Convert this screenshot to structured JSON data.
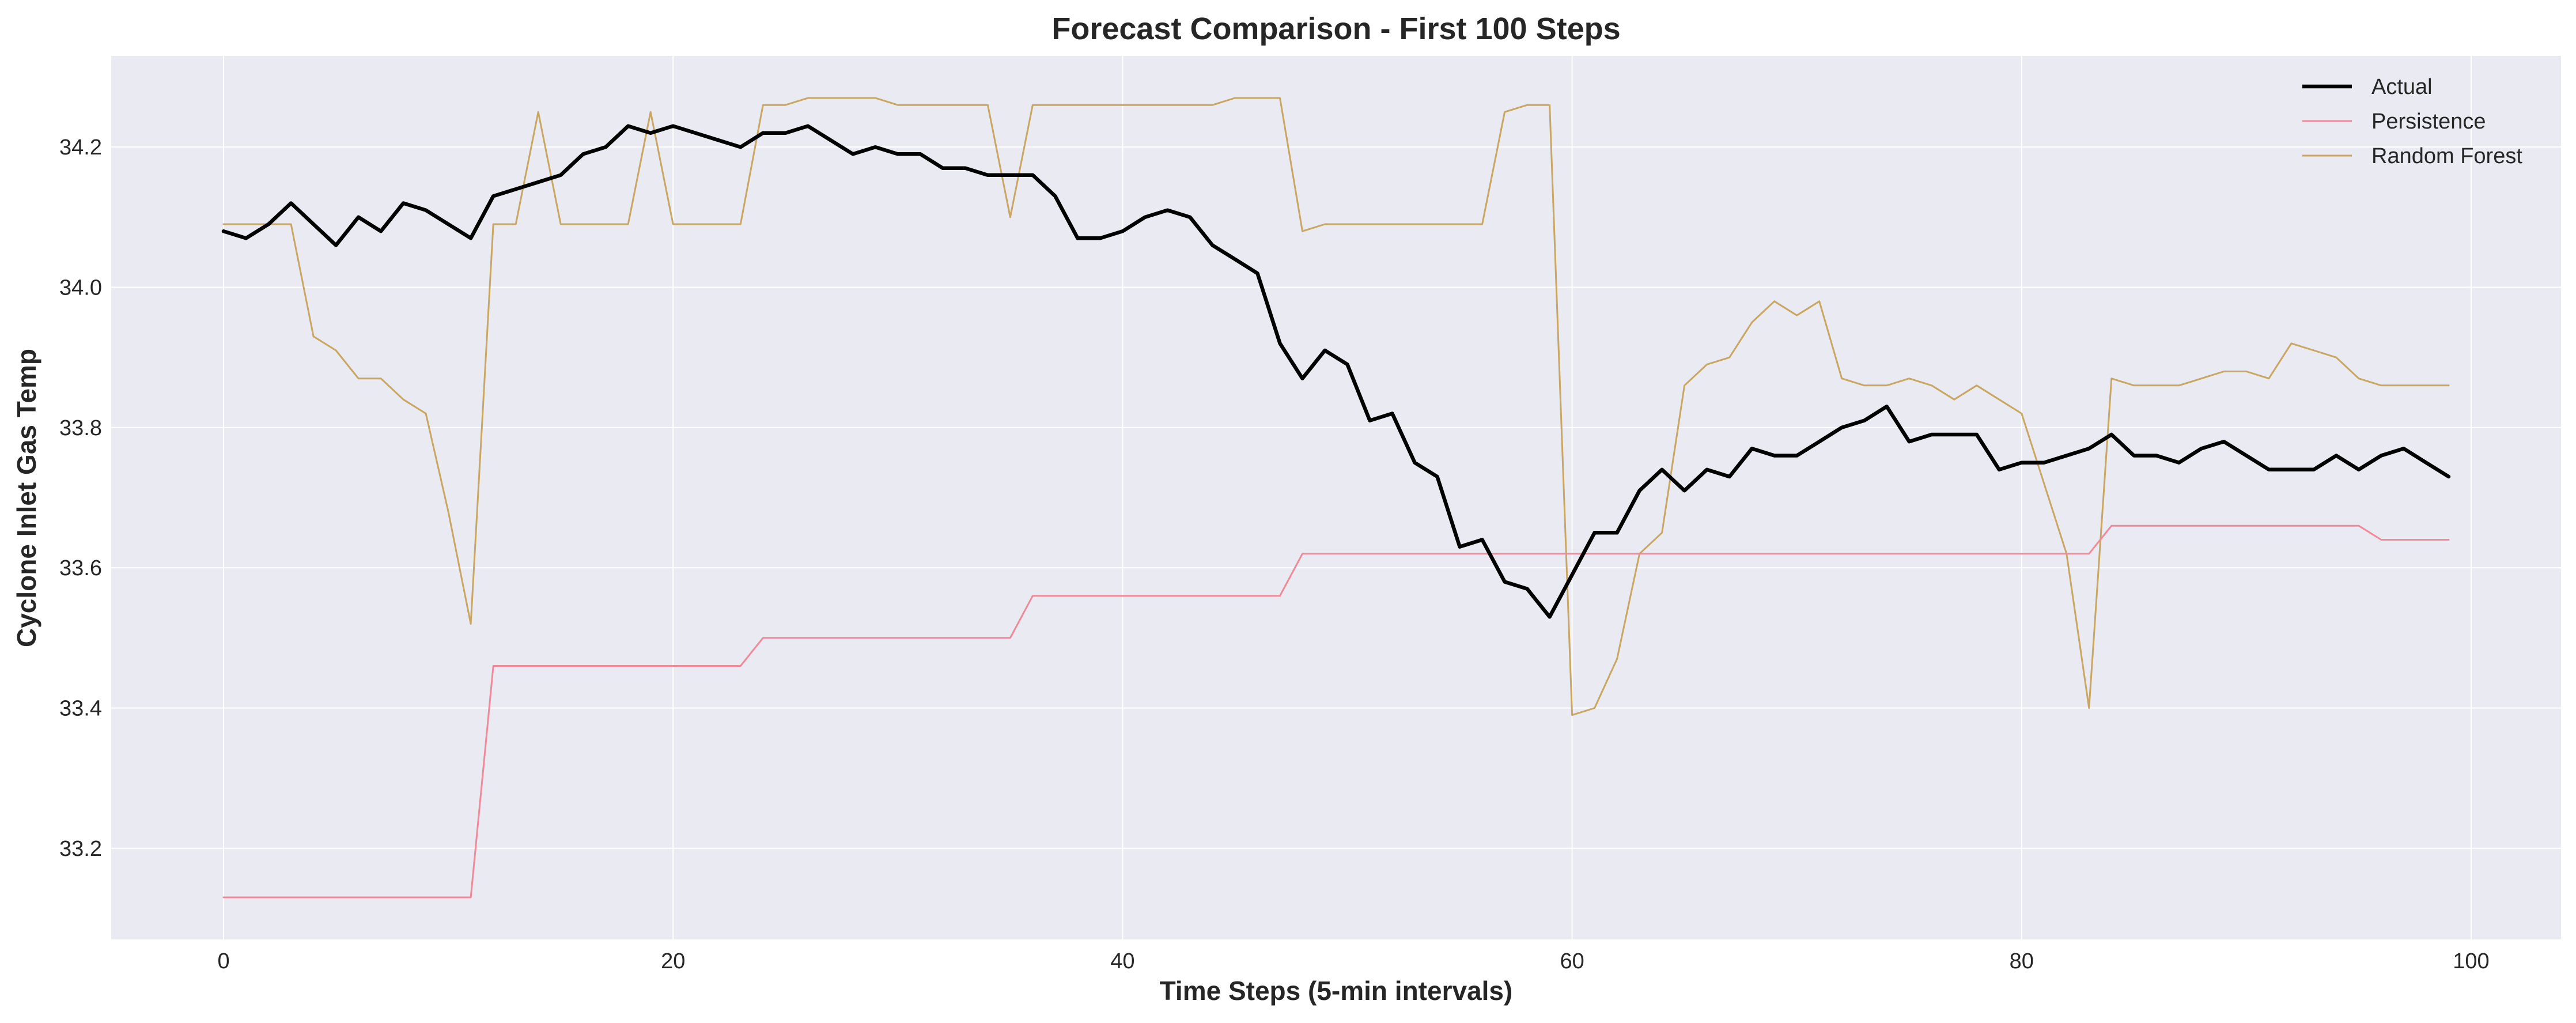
{
  "chart_data": {
    "type": "line",
    "title": "Forecast Comparison - First 100 Steps",
    "xlabel": "Time Steps (5-min intervals)",
    "ylabel": "Cyclone Inlet Gas Temp",
    "xlim": [
      -5,
      104
    ],
    "ylim": [
      33.07,
      34.33
    ],
    "xticks": [
      0,
      20,
      40,
      60,
      80,
      100
    ],
    "xtick_labels": [
      "0",
      "20",
      "40",
      "60",
      "80",
      "100"
    ],
    "yticks": [
      33.2,
      33.4,
      33.6,
      33.8,
      34.0,
      34.2
    ],
    "ytick_labels": [
      "33.2",
      "33.4",
      "33.6",
      "33.8",
      "34.0",
      "34.2"
    ],
    "grid": true,
    "background": "#eaeaf2",
    "legend_position": "top-right",
    "series": [
      {
        "name": "Actual",
        "color": "#000000",
        "line_width": "thick",
        "x": [
          0,
          1,
          2,
          3,
          4,
          5,
          6,
          7,
          8,
          9,
          10,
          11,
          12,
          13,
          14,
          15,
          16,
          17,
          18,
          19,
          20,
          21,
          22,
          23,
          24,
          25,
          26,
          27,
          28,
          29,
          30,
          31,
          32,
          33,
          34,
          35,
          36,
          37,
          38,
          39,
          40,
          41,
          42,
          43,
          44,
          45,
          46,
          47,
          48,
          49,
          50,
          51,
          52,
          53,
          54,
          55,
          56,
          57,
          58,
          59,
          60,
          61,
          62,
          63,
          64,
          65,
          66,
          67,
          68,
          69,
          70,
          71,
          72,
          73,
          74,
          75,
          76,
          77,
          78,
          79,
          80,
          81,
          82,
          83,
          84,
          85,
          86,
          87,
          88,
          89,
          90,
          91,
          92,
          93,
          94,
          95,
          96,
          97,
          98,
          99
        ],
        "y": [
          34.08,
          34.07,
          34.09,
          34.12,
          34.09,
          34.06,
          34.1,
          34.08,
          34.12,
          34.11,
          34.09,
          34.07,
          34.13,
          34.14,
          34.15,
          34.16,
          34.19,
          34.2,
          34.23,
          34.22,
          34.23,
          34.22,
          34.21,
          34.2,
          34.22,
          34.22,
          34.23,
          34.21,
          34.19,
          34.2,
          34.19,
          34.19,
          34.17,
          34.17,
          34.16,
          34.16,
          34.16,
          34.13,
          34.07,
          34.07,
          34.08,
          34.1,
          34.11,
          34.1,
          34.06,
          34.04,
          34.02,
          33.92,
          33.87,
          33.91,
          33.89,
          33.81,
          33.82,
          33.75,
          33.73,
          33.63,
          33.64,
          33.58,
          33.57,
          33.53,
          33.59,
          33.65,
          33.65,
          33.71,
          33.74,
          33.71,
          33.74,
          33.73,
          33.77,
          33.76,
          33.76,
          33.78,
          33.8,
          33.81,
          33.83,
          33.78,
          33.79,
          33.79,
          33.79,
          33.74,
          33.75,
          33.75,
          33.76,
          33.77,
          33.79,
          33.76,
          33.76,
          33.75,
          33.77,
          33.78,
          33.76,
          33.74,
          33.74,
          33.74,
          33.76,
          33.74,
          33.76,
          33.77,
          33.75,
          33.73
        ]
      },
      {
        "name": "Persistence",
        "color": "#f08a98",
        "line_width": "thin",
        "x": [
          0,
          1,
          2,
          3,
          4,
          5,
          6,
          7,
          8,
          9,
          10,
          11,
          12,
          13,
          14,
          15,
          16,
          17,
          18,
          19,
          20,
          21,
          22,
          23,
          24,
          25,
          26,
          27,
          28,
          29,
          30,
          31,
          32,
          33,
          34,
          35,
          36,
          37,
          38,
          39,
          40,
          41,
          42,
          43,
          44,
          45,
          46,
          47,
          48,
          49,
          50,
          51,
          52,
          53,
          54,
          55,
          56,
          57,
          58,
          59,
          60,
          61,
          62,
          63,
          64,
          65,
          66,
          67,
          68,
          69,
          70,
          71,
          72,
          73,
          74,
          75,
          76,
          77,
          78,
          79,
          80,
          81,
          82,
          83,
          84,
          85,
          86,
          87,
          88,
          89,
          90,
          91,
          92,
          93,
          94,
          95,
          96,
          97,
          98,
          99
        ],
        "y": [
          33.13,
          33.13,
          33.13,
          33.13,
          33.13,
          33.13,
          33.13,
          33.13,
          33.13,
          33.13,
          33.13,
          33.13,
          33.46,
          33.46,
          33.46,
          33.46,
          33.46,
          33.46,
          33.46,
          33.46,
          33.46,
          33.46,
          33.46,
          33.46,
          33.5,
          33.5,
          33.5,
          33.5,
          33.5,
          33.5,
          33.5,
          33.5,
          33.5,
          33.5,
          33.5,
          33.5,
          33.56,
          33.56,
          33.56,
          33.56,
          33.56,
          33.56,
          33.56,
          33.56,
          33.56,
          33.56,
          33.56,
          33.56,
          33.62,
          33.62,
          33.62,
          33.62,
          33.62,
          33.62,
          33.62,
          33.62,
          33.62,
          33.62,
          33.62,
          33.62,
          33.62,
          33.62,
          33.62,
          33.62,
          33.62,
          33.62,
          33.62,
          33.62,
          33.62,
          33.62,
          33.62,
          33.62,
          33.62,
          33.62,
          33.62,
          33.62,
          33.62,
          33.62,
          33.62,
          33.62,
          33.62,
          33.62,
          33.62,
          33.62,
          33.66,
          33.66,
          33.66,
          33.66,
          33.66,
          33.66,
          33.66,
          33.66,
          33.66,
          33.66,
          33.66,
          33.66,
          33.64,
          33.64,
          33.64,
          33.64
        ]
      },
      {
        "name": "Random Forest",
        "color": "#c9a662",
        "line_width": "thin",
        "x": [
          0,
          1,
          2,
          3,
          4,
          5,
          6,
          7,
          8,
          9,
          10,
          11,
          12,
          13,
          14,
          15,
          16,
          17,
          18,
          19,
          20,
          21,
          22,
          23,
          24,
          25,
          26,
          27,
          28,
          29,
          30,
          31,
          32,
          33,
          34,
          35,
          36,
          37,
          38,
          39,
          40,
          41,
          42,
          43,
          44,
          45,
          46,
          47,
          48,
          49,
          50,
          51,
          52,
          53,
          54,
          55,
          56,
          57,
          58,
          59,
          60,
          61,
          62,
          63,
          64,
          65,
          66,
          67,
          68,
          69,
          70,
          71,
          72,
          73,
          74,
          75,
          76,
          77,
          78,
          79,
          80,
          81,
          82,
          83,
          84,
          85,
          86,
          87,
          88,
          89,
          90,
          91,
          92,
          93,
          94,
          95,
          96,
          97,
          98,
          99
        ],
        "y": [
          34.09,
          34.09,
          34.09,
          34.09,
          33.93,
          33.91,
          33.87,
          33.87,
          33.84,
          33.82,
          33.68,
          33.52,
          34.09,
          34.09,
          34.25,
          34.09,
          34.09,
          34.09,
          34.09,
          34.25,
          34.09,
          34.09,
          34.09,
          34.09,
          34.26,
          34.26,
          34.27,
          34.27,
          34.27,
          34.27,
          34.26,
          34.26,
          34.26,
          34.26,
          34.26,
          34.1,
          34.26,
          34.26,
          34.26,
          34.26,
          34.26,
          34.26,
          34.26,
          34.26,
          34.26,
          34.27,
          34.27,
          34.27,
          34.08,
          34.09,
          34.09,
          34.09,
          34.09,
          34.09,
          34.09,
          34.09,
          34.09,
          34.25,
          34.26,
          34.26,
          33.39,
          33.4,
          33.47,
          33.62,
          33.65,
          33.86,
          33.89,
          33.9,
          33.95,
          33.98,
          33.96,
          33.98,
          33.87,
          33.86,
          33.86,
          33.87,
          33.86,
          33.84,
          33.86,
          33.84,
          33.82,
          33.72,
          33.62,
          33.4,
          33.87,
          33.86,
          33.86,
          33.86,
          33.87,
          33.88,
          33.88,
          33.87,
          33.92,
          33.91,
          33.9,
          33.87,
          33.86,
          33.86,
          33.86,
          33.86
        ]
      }
    ]
  }
}
